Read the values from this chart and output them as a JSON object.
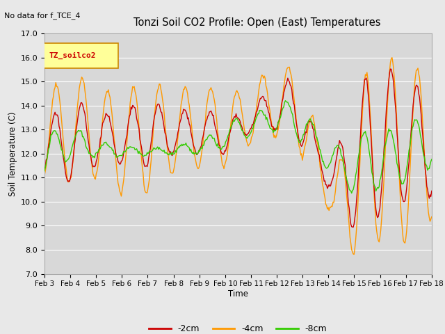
{
  "title": "Tonzi Soil CO2 Profile: Open (East) Temperatures",
  "top_left_text": "No data for f_TCE_4",
  "legend_box_text": "TZ_soilco2",
  "xlabel": "Time",
  "ylabel": "Soil Temperature (C)",
  "ylim": [
    7.0,
    17.0
  ],
  "yticks": [
    7.0,
    8.0,
    9.0,
    10.0,
    11.0,
    12.0,
    13.0,
    14.0,
    15.0,
    16.0,
    17.0
  ],
  "xtick_labels": [
    "Feb 3",
    "Feb 4",
    "Feb 5",
    "Feb 6",
    "Feb 7",
    "Feb 8",
    "Feb 9",
    "Feb 10",
    "Feb 11",
    "Feb 12",
    "Feb 13",
    "Feb 14",
    "Feb 15",
    "Feb 16",
    "Feb 17",
    "Feb 18"
  ],
  "color_2cm": "#cc0000",
  "color_4cm": "#ff9900",
  "color_8cm": "#33cc00",
  "bg_color": "#e8e8e8",
  "plot_bg_color": "#d4d4d4",
  "legend_entries": [
    "-2cm",
    "-4cm",
    "-8cm"
  ],
  "n_points": 480
}
